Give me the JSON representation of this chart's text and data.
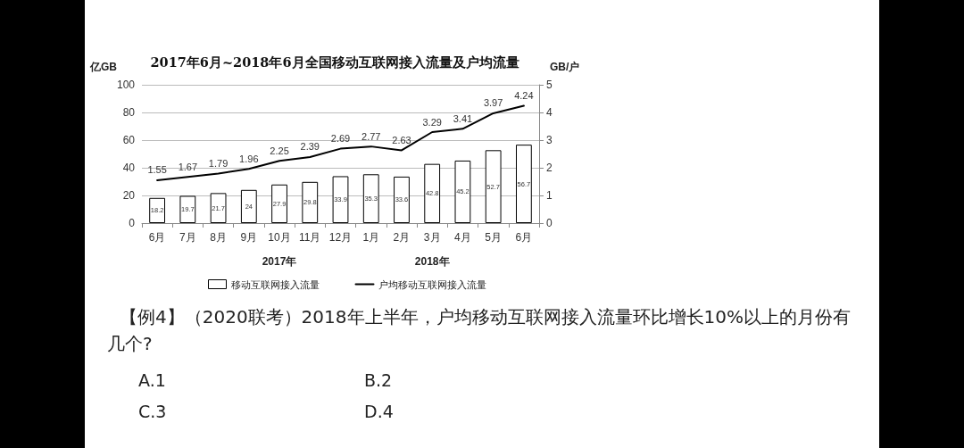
{
  "chart_data": {
    "type": "bar",
    "title": "2017年6月~2018年6月全国移动互联网接入流量及户均流量",
    "ylabel": "亿GB",
    "y2label": "GB/户",
    "categories": [
      "6月",
      "7月",
      "8月",
      "9月",
      "10月",
      "11月",
      "12月",
      "1月",
      "2月",
      "3月",
      "4月",
      "5月",
      "6月"
    ],
    "series": [
      {
        "name": "移动互联网接入流量",
        "color": "#ffffff",
        "values": [
          18.2,
          19.7,
          21.7,
          24,
          27.9,
          29.8,
          33.9,
          35.3,
          33.6,
          42.8,
          45.2,
          52.7,
          56.7
        ]
      },
      {
        "name": "户均移动互联网接入流量",
        "type": "line",
        "axis": "y2",
        "color": "#000000",
        "values": [
          1.55,
          1.67,
          1.79,
          1.96,
          2.25,
          2.39,
          2.69,
          2.77,
          2.63,
          3.29,
          3.41,
          3.97,
          4.24
        ]
      }
    ],
    "ylim": [
      0,
      100
    ],
    "yticks": [
      0,
      20,
      40,
      60,
      80,
      100
    ],
    "y2lim": [
      0,
      5
    ],
    "y2ticks": [
      0,
      1,
      2,
      3,
      4,
      5
    ],
    "grid": "y",
    "legend": "bottom",
    "data_labels": true,
    "marker": "none",
    "line_style": "solid",
    "annotations": [
      "2017年",
      "2018年",
      "【例4】（2020联考）2018年上半年，户均移动互联网接入流量环比增长10%以上的月份有几个?",
      "A.1",
      "B.2",
      "C.3",
      "D.4"
    ]
  }
}
